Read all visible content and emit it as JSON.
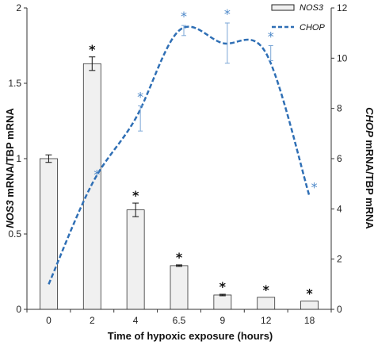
{
  "chart_data": {
    "type": "bar+line",
    "xlabel": "Time of hypoxic exposure (hours)",
    "ylabel_left": {
      "italic": "NOS3",
      "rest": " mRNA/TBP mRNA"
    },
    "ylabel_right": {
      "italic": "CHOP",
      "rest": " mRNA/TBP mRNA"
    },
    "categories": [
      "0",
      "2",
      "4",
      "6.5",
      "9",
      "12",
      "18"
    ],
    "left_axis": {
      "min": 0,
      "max": 2,
      "ticks": [
        "0",
        "0.5",
        "1",
        "1.5",
        "2"
      ]
    },
    "right_axis": {
      "min": 0,
      "max": 12,
      "ticks": [
        "0",
        "2",
        "4",
        "6",
        "8",
        "10",
        "12"
      ]
    },
    "series": [
      {
        "name": "NOS3",
        "kind": "bar",
        "axis": "left",
        "values": [
          1.0,
          1.63,
          0.66,
          0.29,
          0.095,
          0.08,
          0.055
        ],
        "errors": [
          0.025,
          0.045,
          0.045,
          0.005,
          0.005,
          0.0,
          0.0
        ],
        "significant": [
          false,
          true,
          true,
          true,
          true,
          true,
          true
        ],
        "color": "#f0f0f0"
      },
      {
        "name": "CHOP",
        "kind": "line",
        "axis": "right",
        "values": [
          1.0,
          5.0,
          7.6,
          11.1,
          10.6,
          10.2,
          4.5
        ],
        "errors": [
          0,
          0,
          0.5,
          0.2,
          0.8,
          0.3,
          0
        ],
        "significant": [
          false,
          true,
          true,
          true,
          true,
          true,
          true
        ],
        "color": "#2f6fb5"
      }
    ],
    "significance_marker": "*",
    "legend": {
      "position": "top-right",
      "entries": [
        "NOS3",
        "CHOP"
      ]
    }
  }
}
